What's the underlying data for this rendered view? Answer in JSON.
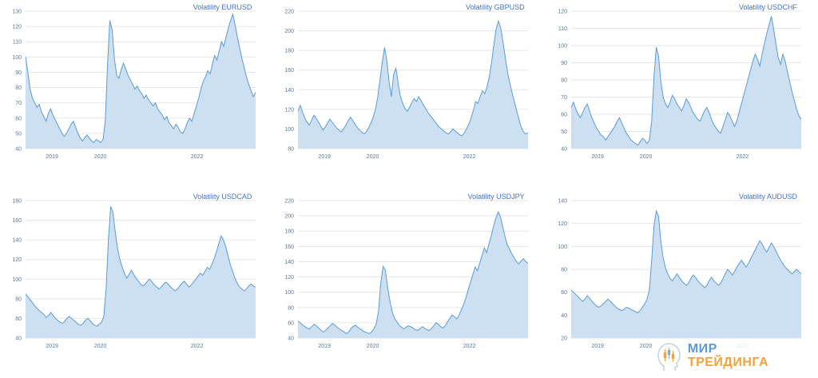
{
  "colors": {
    "area": "#cde0f2",
    "line": "#5b9bd5",
    "grid": "#e6e6e6",
    "tick": "#56789c",
    "title": "#4472c4"
  },
  "logo": {
    "line1": "МИР",
    "line2": "ТРЕЙДИНГА",
    "color1": "#5b9bd5",
    "color2": "#f2a13b",
    "icon": "head-with-candlesticks-icon"
  },
  "chart_data": [
    {
      "type": "area",
      "title": "Volatility EURUSD",
      "ylim": [
        40,
        130
      ],
      "ytick_step": 10,
      "x_labels": [
        {
          "label": "2019",
          "pos": 0.115
        },
        {
          "label": "2020",
          "pos": 0.325
        },
        {
          "label": "2022",
          "pos": 0.745
        }
      ],
      "values": [
        100,
        90,
        79,
        73,
        70,
        67,
        69,
        64,
        61,
        58,
        63,
        66,
        62,
        59,
        56,
        53,
        50,
        48,
        50,
        53,
        56,
        58,
        54,
        50,
        47,
        45,
        47,
        49,
        47,
        45,
        44,
        46,
        45,
        44,
        46,
        58,
        96,
        124,
        118,
        99,
        88,
        86,
        92,
        96,
        92,
        88,
        85,
        82,
        79,
        81,
        78,
        76,
        73,
        75,
        72,
        70,
        68,
        70,
        66,
        64,
        62,
        59,
        61,
        57,
        55,
        53,
        56,
        54,
        51,
        50,
        53,
        57,
        60,
        58,
        63,
        68,
        73,
        79,
        84,
        87,
        91,
        89,
        95,
        101,
        98,
        104,
        110,
        107,
        113,
        119,
        124,
        128,
        121,
        113,
        106,
        99,
        93,
        87,
        82,
        78,
        74,
        77
      ]
    },
    {
      "type": "area",
      "title": "Volatility GBPUSD",
      "ylim": [
        80,
        220
      ],
      "ytick_step": 20,
      "x_labels": [
        {
          "label": "2019",
          "pos": 0.115
        },
        {
          "label": "2020",
          "pos": 0.325
        },
        {
          "label": "2022",
          "pos": 0.745
        }
      ],
      "values": [
        118,
        124,
        117,
        111,
        107,
        104,
        109,
        114,
        111,
        107,
        103,
        99,
        102,
        106,
        110,
        107,
        104,
        101,
        99,
        97,
        100,
        104,
        108,
        112,
        109,
        105,
        102,
        99,
        97,
        95,
        97,
        101,
        106,
        112,
        120,
        132,
        150,
        168,
        183,
        170,
        148,
        133,
        156,
        162,
        146,
        133,
        126,
        121,
        118,
        122,
        127,
        131,
        128,
        133,
        129,
        125,
        121,
        117,
        114,
        111,
        108,
        105,
        102,
        100,
        98,
        96,
        95,
        97,
        100,
        98,
        96,
        94,
        93,
        96,
        100,
        105,
        111,
        119,
        128,
        126,
        133,
        139,
        136,
        143,
        153,
        168,
        186,
        202,
        210,
        203,
        189,
        173,
        158,
        147,
        137,
        128,
        119,
        110,
        102,
        97,
        95,
        96
      ]
    },
    {
      "type": "area",
      "title": "Volatility USDCHF",
      "ylim": [
        40,
        120
      ],
      "ytick_step": 10,
      "x_labels": [
        {
          "label": "2019",
          "pos": 0.115
        },
        {
          "label": "2020",
          "pos": 0.325
        },
        {
          "label": "2022",
          "pos": 0.745
        }
      ],
      "values": [
        64,
        67,
        63,
        60,
        58,
        61,
        64,
        66,
        62,
        58,
        55,
        52,
        50,
        48,
        47,
        45,
        47,
        49,
        51,
        53,
        56,
        58,
        55,
        52,
        49,
        47,
        45,
        44,
        43,
        42,
        44,
        46,
        45,
        43,
        45,
        56,
        82,
        99,
        94,
        79,
        70,
        66,
        64,
        67,
        71,
        69,
        66,
        64,
        62,
        65,
        69,
        67,
        64,
        61,
        59,
        57,
        56,
        59,
        62,
        64,
        61,
        57,
        54,
        52,
        50,
        49,
        53,
        57,
        61,
        59,
        56,
        53,
        56,
        61,
        66,
        71,
        76,
        81,
        86,
        91,
        95,
        92,
        88,
        95,
        101,
        107,
        112,
        117,
        110,
        101,
        93,
        89,
        95,
        91,
        85,
        79,
        73,
        68,
        63,
        59,
        57
      ]
    },
    {
      "type": "area",
      "title": "Volatility USDCAD",
      "ylim": [
        40,
        180
      ],
      "ytick_step": 20,
      "x_labels": [
        {
          "label": "2019",
          "pos": 0.115
        },
        {
          "label": "2020",
          "pos": 0.325
        },
        {
          "label": "2022",
          "pos": 0.745
        }
      ],
      "values": [
        85,
        82,
        79,
        76,
        73,
        70,
        68,
        66,
        64,
        61,
        63,
        66,
        63,
        60,
        58,
        56,
        55,
        57,
        60,
        62,
        60,
        58,
        56,
        54,
        53,
        55,
        58,
        60,
        58,
        55,
        53,
        52,
        54,
        56,
        62,
        90,
        140,
        174,
        168,
        148,
        131,
        120,
        112,
        106,
        101,
        105,
        109,
        105,
        101,
        98,
        95,
        93,
        95,
        98,
        100,
        97,
        94,
        92,
        90,
        92,
        95,
        97,
        95,
        92,
        90,
        88,
        90,
        93,
        96,
        98,
        95,
        92,
        94,
        97,
        100,
        103,
        106,
        104,
        108,
        112,
        110,
        115,
        121,
        128,
        136,
        144,
        140,
        133,
        124,
        115,
        108,
        101,
        96,
        92,
        90,
        88,
        90,
        93,
        95,
        93,
        92
      ]
    },
    {
      "type": "area",
      "title": "Volatility USDJPY",
      "ylim": [
        40,
        220
      ],
      "ytick_step": 20,
      "x_labels": [
        {
          "label": "2019",
          "pos": 0.115
        },
        {
          "label": "2020",
          "pos": 0.325
        },
        {
          "label": "2022",
          "pos": 0.745
        }
      ],
      "values": [
        62,
        60,
        57,
        55,
        53,
        52,
        55,
        58,
        56,
        53,
        50,
        48,
        50,
        53,
        56,
        59,
        57,
        54,
        52,
        50,
        48,
        46,
        48,
        52,
        55,
        57,
        54,
        52,
        50,
        48,
        47,
        46,
        48,
        52,
        58,
        75,
        112,
        134,
        129,
        106,
        88,
        74,
        66,
        61,
        57,
        54,
        52,
        54,
        56,
        55,
        53,
        51,
        50,
        52,
        55,
        53,
        51,
        50,
        52,
        56,
        60,
        58,
        55,
        53,
        56,
        61,
        66,
        70,
        68,
        65,
        70,
        77,
        84,
        93,
        103,
        113,
        123,
        133,
        128,
        138,
        148,
        158,
        152,
        163,
        174,
        186,
        197,
        205,
        199,
        186,
        173,
        162,
        156,
        150,
        145,
        140,
        137,
        141,
        144,
        140,
        138
      ]
    },
    {
      "type": "area",
      "title": "Volatility AUDUSD",
      "ylim": [
        20,
        140
      ],
      "ytick_step": 20,
      "x_labels": [
        {
          "label": "2019",
          "pos": 0.115
        },
        {
          "label": "2020",
          "pos": 0.325
        },
        {
          "label": "2022",
          "pos": 0.745
        }
      ],
      "values": [
        62,
        60,
        58,
        56,
        54,
        52,
        54,
        57,
        55,
        52,
        50,
        48,
        47,
        48,
        50,
        52,
        54,
        52,
        50,
        48,
        46,
        45,
        44,
        45,
        47,
        46,
        45,
        44,
        43,
        42,
        44,
        47,
        50,
        54,
        62,
        88,
        118,
        131,
        126,
        104,
        90,
        81,
        76,
        72,
        70,
        73,
        76,
        73,
        70,
        68,
        66,
        68,
        72,
        75,
        73,
        70,
        68,
        66,
        64,
        66,
        70,
        73,
        70,
        68,
        66,
        68,
        72,
        76,
        80,
        78,
        75,
        78,
        82,
        85,
        88,
        85,
        82,
        85,
        89,
        93,
        97,
        101,
        105,
        102,
        98,
        95,
        99,
        103,
        100,
        96,
        92,
        88,
        85,
        82,
        80,
        78,
        76,
        78,
        80,
        78,
        76
      ]
    }
  ]
}
